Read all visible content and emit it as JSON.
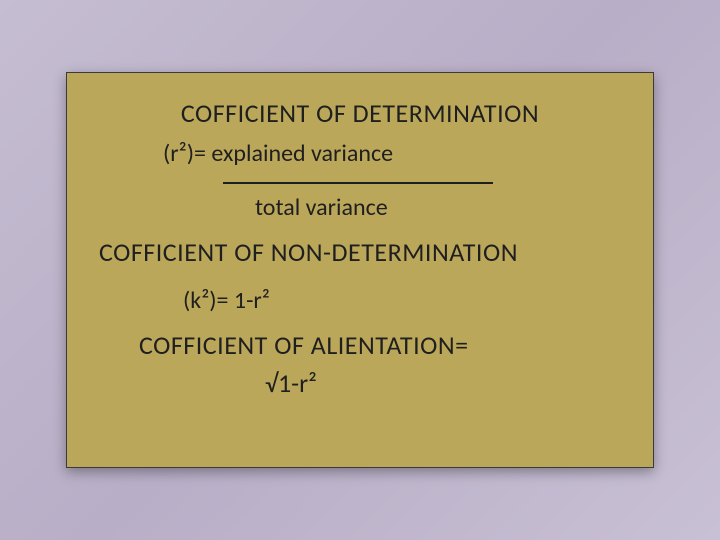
{
  "slide": {
    "background_gradient": [
      "#c5bdd1",
      "#b8aec7",
      "#c8c0d4"
    ],
    "card_bg": "#bba75a",
    "card_border": "#3a3a3a",
    "text_color": "#1f1f1f",
    "heading1": "COFFICIENT OF DETERMINATION",
    "formula1_lhs": "(r²)= explained variance",
    "formula1_denom": "total variance",
    "heading2": "COFFICIENT OF NON-DETERMINATION",
    "formula2": "(k²)= 1-r²",
    "heading3": "COFFICIENT OF ALIENTATION=",
    "formula3": "√1-r²"
  }
}
